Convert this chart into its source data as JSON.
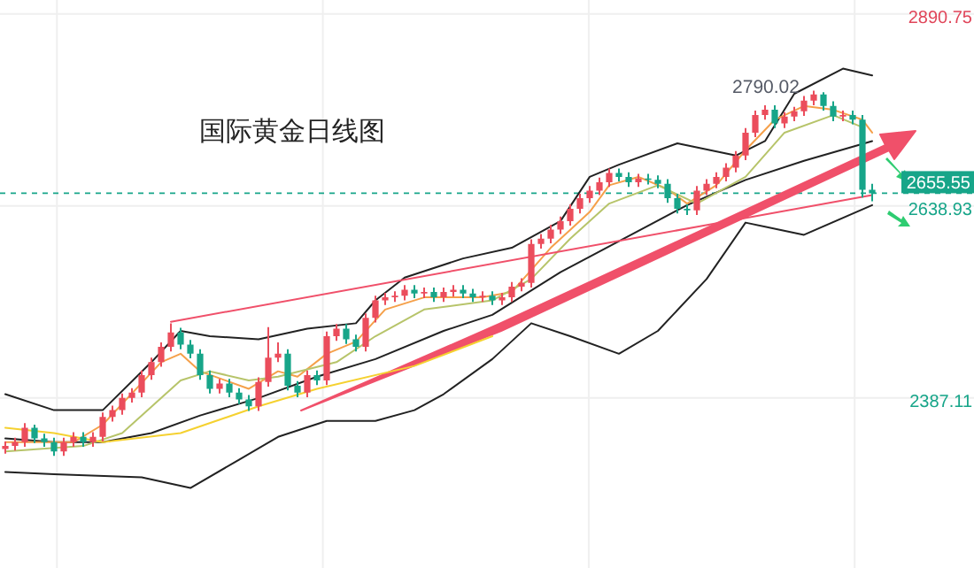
{
  "chart_data": {
    "type": "candlestick",
    "title": "国际黄金日线图",
    "categories": [
      null,
      null,
      null,
      null,
      null,
      null,
      null,
      null,
      null,
      null,
      null,
      null,
      null,
      null,
      null,
      null,
      null,
      null,
      null,
      null,
      null,
      null,
      null,
      null,
      null,
      null,
      null,
      null,
      null,
      null,
      null,
      null,
      null,
      null,
      null,
      null,
      null,
      null,
      null,
      null,
      null,
      null,
      null,
      null,
      null,
      null,
      null,
      null,
      null,
      null,
      null,
      null,
      null,
      null,
      null,
      null,
      null,
      null,
      null,
      null,
      null,
      null,
      null,
      null,
      null,
      null,
      null,
      null,
      null,
      null,
      null,
      null,
      null,
      null,
      null,
      null,
      null,
      null,
      null,
      null,
      null,
      null,
      null,
      null,
      null,
      null,
      null,
      null,
      null,
      null
    ],
    "ohlc": [
      [
        2320,
        2330,
        2314,
        2324
      ],
      [
        2324,
        2335,
        2318,
        2329
      ],
      [
        2329,
        2354,
        2323,
        2348
      ],
      [
        2348,
        2352,
        2328,
        2334
      ],
      [
        2334,
        2340,
        2323,
        2329
      ],
      [
        2329,
        2335,
        2311,
        2317
      ],
      [
        2317,
        2335,
        2311,
        2329
      ],
      [
        2329,
        2342,
        2323,
        2336
      ],
      [
        2336,
        2342,
        2323,
        2329
      ],
      [
        2329,
        2342,
        2323,
        2336
      ],
      [
        2336,
        2368,
        2330,
        2362
      ],
      [
        2362,
        2377,
        2356,
        2371
      ],
      [
        2371,
        2393,
        2365,
        2387
      ],
      [
        2387,
        2400,
        2381,
        2394
      ],
      [
        2394,
        2423,
        2388,
        2417
      ],
      [
        2417,
        2440,
        2411,
        2434
      ],
      [
        2434,
        2460,
        2428,
        2454
      ],
      [
        2454,
        2485,
        2448,
        2473
      ],
      [
        2473,
        2479,
        2451,
        2457
      ],
      [
        2457,
        2463,
        2439,
        2445
      ],
      [
        2445,
        2451,
        2411,
        2417
      ],
      [
        2417,
        2423,
        2393,
        2399
      ],
      [
        2399,
        2412,
        2393,
        2406
      ],
      [
        2406,
        2412,
        2388,
        2394
      ],
      [
        2394,
        2400,
        2379,
        2385
      ],
      [
        2385,
        2391,
        2370,
        2376
      ],
      [
        2376,
        2414,
        2370,
        2408
      ],
      [
        2408,
        2480,
        2402,
        2440
      ],
      [
        2440,
        2460,
        2434,
        2445
      ],
      [
        2445,
        2451,
        2397,
        2403
      ],
      [
        2403,
        2409,
        2388,
        2394
      ],
      [
        2394,
        2423,
        2388,
        2417
      ],
      [
        2417,
        2423,
        2404,
        2410
      ],
      [
        2410,
        2474,
        2404,
        2468
      ],
      [
        2468,
        2484,
        2462,
        2478
      ],
      [
        2478,
        2484,
        2458,
        2464
      ],
      [
        2464,
        2470,
        2448,
        2454
      ],
      [
        2454,
        2498,
        2448,
        2492
      ],
      [
        2492,
        2521,
        2486,
        2515
      ],
      [
        2515,
        2525,
        2509,
        2519
      ],
      [
        2519,
        2527,
        2513,
        2521
      ],
      [
        2521,
        2535,
        2515,
        2529
      ],
      [
        2529,
        2535,
        2518,
        2524
      ],
      [
        2524,
        2532,
        2518,
        2526
      ],
      [
        2526,
        2532,
        2513,
        2519
      ],
      [
        2519,
        2532,
        2513,
        2526
      ],
      [
        2526,
        2535,
        2520,
        2529
      ],
      [
        2529,
        2535,
        2518,
        2524
      ],
      [
        2524,
        2530,
        2513,
        2519
      ],
      [
        2519,
        2527,
        2513,
        2521
      ],
      [
        2521,
        2527,
        2509,
        2515
      ],
      [
        2515,
        2525,
        2509,
        2519
      ],
      [
        2519,
        2539,
        2513,
        2533
      ],
      [
        2533,
        2544,
        2527,
        2538
      ],
      [
        2538,
        2595,
        2532,
        2589
      ],
      [
        2589,
        2602,
        2583,
        2596
      ],
      [
        2596,
        2614,
        2590,
        2608
      ],
      [
        2608,
        2625,
        2602,
        2619
      ],
      [
        2619,
        2641,
        2613,
        2635
      ],
      [
        2635,
        2655,
        2629,
        2649
      ],
      [
        2649,
        2665,
        2643,
        2659
      ],
      [
        2659,
        2676,
        2653,
        2670
      ],
      [
        2670,
        2688,
        2664,
        2682
      ],
      [
        2682,
        2688,
        2671,
        2677
      ],
      [
        2677,
        2683,
        2664,
        2670
      ],
      [
        2670,
        2681,
        2664,
        2675
      ],
      [
        2675,
        2681,
        2667,
        2673
      ],
      [
        2673,
        2679,
        2662,
        2668
      ],
      [
        2668,
        2674,
        2643,
        2649
      ],
      [
        2649,
        2655,
        2629,
        2635
      ],
      [
        2635,
        2641,
        2627,
        2633
      ],
      [
        2633,
        2665,
        2627,
        2659
      ],
      [
        2659,
        2674,
        2653,
        2668
      ],
      [
        2668,
        2683,
        2662,
        2677
      ],
      [
        2677,
        2695,
        2671,
        2689
      ],
      [
        2689,
        2711,
        2683,
        2705
      ],
      [
        2705,
        2741,
        2699,
        2735
      ],
      [
        2735,
        2764,
        2729,
        2758
      ],
      [
        2758,
        2771,
        2752,
        2765
      ],
      [
        2765,
        2771,
        2741,
        2747
      ],
      [
        2747,
        2762,
        2741,
        2756
      ],
      [
        2756,
        2769,
        2750,
        2763
      ],
      [
        2763,
        2783,
        2757,
        2777
      ],
      [
        2777,
        2790.02,
        2771,
        2785
      ],
      [
        2785,
        2788,
        2764,
        2770
      ],
      [
        2770,
        2776,
        2750,
        2756
      ],
      [
        2756,
        2764,
        2750,
        2758
      ],
      [
        2758,
        2764,
        2746,
        2752
      ],
      [
        2752,
        2758,
        2650,
        2660
      ],
      [
        2660,
        2668,
        2645,
        2655.55
      ]
    ],
    "colors": [
      "#eb4d5c",
      "#eb4d5c",
      "#eb4d5c",
      "#17a589",
      "#17a589",
      "#17a589",
      "#eb4d5c",
      "#eb4d5c",
      "#17a589",
      "#eb4d5c",
      "#eb4d5c",
      "#eb4d5c",
      "#eb4d5c",
      "#eb4d5c",
      "#eb4d5c",
      "#eb4d5c",
      "#eb4d5c",
      "#eb4d5c",
      "#17a589",
      "#17a589",
      "#17a589",
      "#17a589",
      "#eb4d5c",
      "#17a589",
      "#17a589",
      "#17a589",
      "#eb4d5c",
      "#eb4d5c",
      "#eb4d5c",
      "#17a589",
      "#17a589",
      "#eb4d5c",
      "#17a589",
      "#eb4d5c",
      "#eb4d5c",
      "#17a589",
      "#17a589",
      "#eb4d5c",
      "#eb4d5c",
      "#eb4d5c",
      "#eb4d5c",
      "#eb4d5c",
      "#17a589",
      "#eb4d5c",
      "#17a589",
      "#eb4d5c",
      "#eb4d5c",
      "#17a589",
      "#17a589",
      "#eb4d5c",
      "#17a589",
      "#eb4d5c",
      "#eb4d5c",
      "#eb4d5c",
      "#eb4d5c",
      "#eb4d5c",
      "#eb4d5c",
      "#eb4d5c",
      "#eb4d5c",
      "#eb4d5c",
      "#eb4d5c",
      "#eb4d5c",
      "#eb4d5c",
      "#17a589",
      "#17a589",
      "#eb4d5c",
      "#17a589",
      "#17a589",
      "#17a589",
      "#17a589",
      "#17a589",
      "#eb4d5c",
      "#eb4d5c",
      "#eb4d5c",
      "#eb4d5c",
      "#eb4d5c",
      "#eb4d5c",
      "#eb4d5c",
      "#eb4d5c",
      "#17a589",
      "#eb4d5c",
      "#eb4d5c",
      "#eb4d5c",
      "#eb4d5c",
      "#17a589",
      "#17a589",
      "#eb4d5c",
      "#17a589",
      "#17a589",
      "#17a589"
    ],
    "series": [
      {
        "type": "line",
        "color": "#222222",
        "values": [
          2392,
          null,
          null,
          null,
          null,
          2371,
          null,
          null,
          null,
          null,
          2371,
          null,
          null,
          null,
          null,
          2434,
          null,
          null,
          2475,
          null,
          null,
          2468,
          null,
          null,
          null,
          null,
          2464,
          null,
          null,
          null,
          null,
          2478,
          null,
          null,
          null,
          null,
          2485,
          null,
          2515,
          null,
          null,
          2545,
          null,
          null,
          null,
          null,
          null,
          2570,
          null,
          null,
          null,
          null,
          2584,
          null,
          null,
          null,
          null,
          2619,
          null,
          null,
          2677,
          null,
          null,
          2693,
          null,
          null,
          null,
          null,
          null,
          2721,
          null,
          null,
          null,
          null,
          null,
          2705,
          null,
          null,
          2724,
          null,
          null,
          2786,
          null,
          null,
          null,
          null,
          2819,
          null,
          null,
          2810
        ]
      },
      {
        "type": "line",
        "color": "#222222",
        "values": [
          2290,
          null,
          null,
          null,
          null,
          2287,
          null,
          null,
          null,
          null,
          null,
          null,
          null,
          null,
          2283,
          null,
          null,
          null,
          null,
          2269,
          null,
          null,
          null,
          null,
          2306,
          null,
          null,
          null,
          2336,
          null,
          null,
          null,
          null,
          2357,
          null,
          null,
          null,
          null,
          2357,
          null,
          null,
          null,
          2371,
          null,
          null,
          2392,
          null,
          null,
          null,
          null,
          2438,
          null,
          null,
          null,
          2485,
          null,
          null,
          null,
          2468,
          null,
          null,
          null,
          null,
          2445,
          null,
          null,
          null,
          2475,
          null,
          null,
          null,
          null,
          2543,
          null,
          null,
          null,
          2617,
          null,
          null,
          null,
          null,
          null,
          2601,
          null,
          null,
          null,
          null,
          null,
          null,
          2640
        ]
      },
      {
        "type": "line",
        "color": "#222222",
        "values": [
          2334,
          null,
          null,
          null,
          null,
          2329,
          null,
          null,
          null,
          null,
          2329,
          null,
          null,
          null,
          null,
          2341,
          null,
          null,
          null,
          null,
          2364,
          null,
          null,
          null,
          null,
          null,
          2387,
          null,
          null,
          null,
          null,
          null,
          2415,
          null,
          null,
          null,
          null,
          null,
          2438,
          null,
          null,
          null,
          null,
          null,
          null,
          2475,
          null,
          null,
          null,
          null,
          2496,
          null,
          null,
          null,
          null,
          null,
          null,
          2552,
          null,
          null,
          null,
          null,
          null,
          null,
          null,
          null,
          null,
          null,
          null,
          null,
          2640,
          null,
          null,
          null,
          null,
          null,
          2673,
          null,
          null,
          null,
          null,
          null,
          2698,
          null,
          null,
          null,
          null,
          null,
          null,
          2724
        ]
      },
      {
        "type": "line",
        "color": "#f5a04a",
        "values": [
          2329,
          null,
          null,
          null,
          null,
          null,
          null,
          2329,
          null,
          null,
          2352,
          null,
          null,
          null,
          null,
          null,
          2434,
          null,
          2445,
          null,
          2422,
          null,
          null,
          null,
          null,
          2399,
          null,
          null,
          2422,
          null,
          2415,
          null,
          null,
          2445,
          null,
          null,
          2461,
          null,
          null,
          2503,
          null,
          null,
          null,
          2519,
          null,
          null,
          null,
          null,
          null,
          2519,
          null,
          null,
          2526,
          null,
          null,
          null,
          2584,
          null,
          null,
          null,
          2631,
          null,
          2666,
          null,
          null,
          2677,
          null,
          null,
          2661,
          null,
          2642,
          null,
          null,
          2666,
          null,
          null,
          2712,
          null,
          null,
          2752,
          null,
          null,
          2770,
          null,
          null,
          2765,
          null,
          null,
          2752,
          2735
        ]
      },
      {
        "type": "line",
        "color": "#b7c46a",
        "values": [
          2317,
          null,
          null,
          null,
          null,
          null,
          null,
          null,
          2324,
          null,
          null,
          null,
          2341,
          null,
          null,
          null,
          null,
          null,
          2410,
          null,
          null,
          2422,
          null,
          null,
          null,
          2410,
          null,
          null,
          2415,
          null,
          null,
          null,
          null,
          null,
          2434,
          null,
          null,
          null,
          2468,
          null,
          null,
          null,
          null,
          2503,
          null,
          null,
          null,
          null,
          null,
          null,
          2515,
          null,
          null,
          null,
          2543,
          null,
          null,
          null,
          2596,
          null,
          null,
          null,
          2642,
          null,
          null,
          null,
          null,
          2666,
          null,
          null,
          null,
          2642,
          null,
          null,
          null,
          null,
          2677,
          null,
          null,
          null,
          2735,
          null,
          null,
          null,
          null,
          2758,
          null,
          null,
          2742,
          null
        ]
      },
      {
        "type": "line",
        "color": "#f5d130",
        "values": [
          2348,
          null,
          null,
          null,
          null,
          2341,
          null,
          null,
          null,
          null,
          2329,
          null,
          null,
          null,
          null,
          null,
          null,
          null,
          2341,
          null,
          null,
          null,
          null,
          null,
          null,
          null,
          2376,
          null,
          null,
          null,
          null,
          null,
          2399,
          null,
          null,
          null,
          null,
          null,
          null,
          null,
          null,
          null,
          2429,
          null,
          null,
          null,
          null,
          null,
          null,
          null,
          2468,
          null,
          null,
          null,
          null,
          null,
          null,
          null,
          null,
          null,
          null,
          null,
          null,
          null,
          null,
          null,
          null,
          null,
          null,
          null,
          null,
          null,
          null,
          null,
          null,
          null,
          null,
          null,
          null,
          null,
          null,
          null,
          null,
          null,
          null,
          null,
          null,
          null,
          null,
          null
        ]
      },
      {
        "type": "line",
        "color": "#f0506a",
        "values": [
          null,
          null,
          null,
          null,
          null,
          null,
          null,
          null,
          null,
          null,
          null,
          null,
          null,
          null,
          null,
          null,
          null,
          2487,
          null,
          null,
          null,
          null,
          null,
          null,
          null,
          null,
          null,
          null,
          null,
          null,
          null,
          null,
          null,
          null,
          null,
          null,
          null,
          null,
          null,
          null,
          null,
          null,
          null,
          null,
          null,
          null,
          null,
          null,
          null,
          null,
          null,
          null,
          null,
          null,
          null,
          null,
          null,
          null,
          null,
          null,
          null,
          null,
          null,
          null,
          null,
          null,
          null,
          null,
          null,
          null,
          null,
          null,
          null,
          null,
          null,
          null,
          null,
          null,
          null,
          null,
          null,
          null,
          null,
          null,
          null,
          null,
          null,
          null,
          null,
          2653
        ]
      }
    ],
    "ylim": [
      2164,
      2909
    ],
    "yticks": [
      2890.75,
      2638.93,
      2387.11
    ],
    "grid": true,
    "ref_lines": [
      {
        "axis": "y",
        "value": 2655.55,
        "label": "2655.55",
        "color": "#17a589",
        "line_style": "dashed"
      }
    ],
    "annotations": [
      "2790.02"
    ]
  }
}
